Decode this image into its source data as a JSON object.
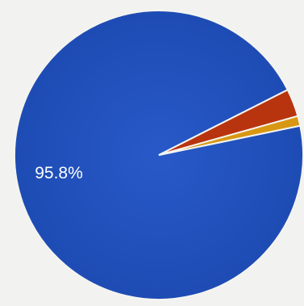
{
  "chart_data": {
    "type": "pie",
    "slices": [
      {
        "label": "",
        "value": 95.8,
        "color": "#1f4fb8"
      },
      {
        "label": "",
        "value": 3.1,
        "color": "#b8340f"
      },
      {
        "label": "",
        "value": 1.1,
        "color": "#d89712"
      }
    ],
    "data_labels": [
      "95.8%"
    ]
  }
}
